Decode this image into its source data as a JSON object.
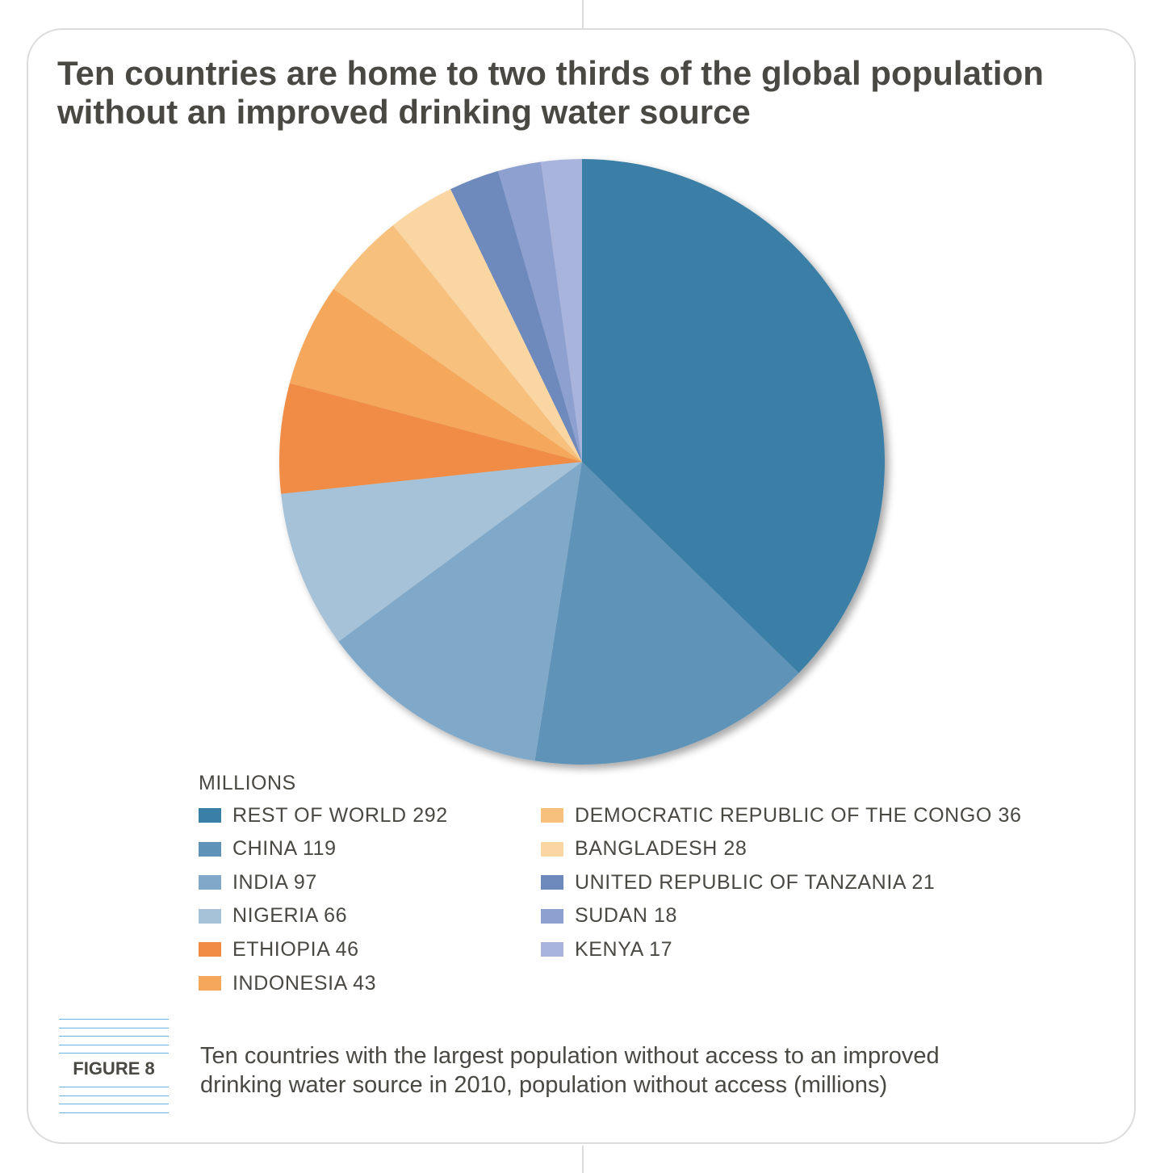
{
  "title_lines": [
    "Ten countries are home to two thirds of the global population",
    "without an improved drinking water source"
  ],
  "figure_label": "FIGURE 8",
  "caption_lines": [
    "Ten countries with the largest population without access to an improved",
    "drinking water source in 2010, population without access (millions)"
  ],
  "chart_data": {
    "type": "pie",
    "units_label": "MILLIONS",
    "slices": [
      {
        "label": "REST OF WORLD 292",
        "name": "REST OF WORLD",
        "value": 292,
        "color": "#3a7fa6"
      },
      {
        "label": "CHINA 119",
        "name": "CHINA",
        "value": 119,
        "color": "#5e93b7"
      },
      {
        "label": "INDIA 97",
        "name": "INDIA",
        "value": 97,
        "color": "#80a9c9"
      },
      {
        "label": "NIGERIA 66",
        "name": "NIGERIA",
        "value": 66,
        "color": "#a5c2d8"
      },
      {
        "label": "ETHIOPIA 46",
        "name": "ETHIOPIA",
        "value": 46,
        "color": "#f08c45"
      },
      {
        "label": "INDONESIA 43",
        "name": "INDONESIA",
        "value": 43,
        "color": "#f5a85c"
      },
      {
        "label": "DEMOCRATIC REPUBLIC OF THE CONGO 36",
        "name": "DEMOCRATIC REPUBLIC OF THE CONGO",
        "value": 36,
        "color": "#f7c07c"
      },
      {
        "label": "BANGLADESH 28",
        "name": "BANGLADESH",
        "value": 28,
        "color": "#fad6a3"
      },
      {
        "label": "UNITED REPUBLIC OF TANZANIA 21",
        "name": "UNITED REPUBLIC OF TANZANIA",
        "value": 21,
        "color": "#6e8abd"
      },
      {
        "label": "SUDAN 18",
        "name": "SUDAN",
        "value": 18,
        "color": "#8ea0cf"
      },
      {
        "label": "KENYA 17",
        "name": "KENYA",
        "value": 17,
        "color": "#a8b4dc"
      }
    ]
  }
}
